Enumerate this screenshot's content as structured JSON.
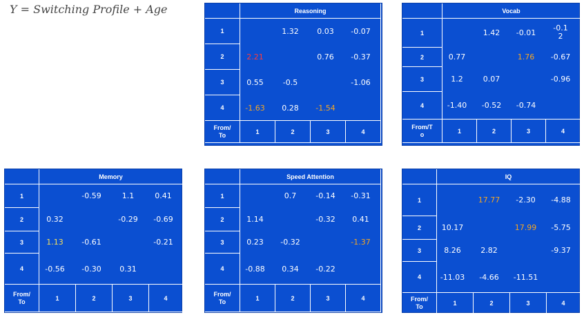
{
  "formula": "Y = Switching Profile + Age",
  "colors": {
    "table_bg": "#0b4fd1",
    "text": "#ffffff",
    "red": "#ff3b3b",
    "orange": "#f5a623",
    "yellow": "#f7e05a"
  },
  "tables": {
    "reasoning": {
      "title": "Reasoning",
      "corner": "From/\nTo",
      "rows": [
        "1",
        "2",
        "3",
        "4"
      ],
      "cols": [
        "1",
        "2",
        "3",
        "4"
      ],
      "values": [
        [
          "",
          "1.32",
          "0.03",
          "-0.07"
        ],
        [
          "2.21",
          "",
          "0.76",
          "-0.37"
        ],
        [
          "0.55",
          "-0.5",
          "",
          "-1.06"
        ],
        [
          "-1.63",
          "0.28",
          "-1.54",
          ""
        ]
      ]
    },
    "vocab": {
      "title": "Vocab",
      "corner": "From/T\no",
      "rows": [
        "1",
        "2",
        "3",
        "4"
      ],
      "cols": [
        "1",
        "2",
        "3",
        "4"
      ],
      "values": [
        [
          "",
          "1.42",
          "-0.01",
          "-0.1\n2"
        ],
        [
          "0.77",
          "",
          "1.76",
          "-0.67"
        ],
        [
          "1.2",
          "0.07",
          "",
          "-0.96"
        ],
        [
          "-1.40",
          "-0.52",
          "-0.74",
          ""
        ]
      ]
    },
    "memory": {
      "title": "Memory",
      "corner": "From/\nTo",
      "rows": [
        "1",
        "2",
        "3",
        "4"
      ],
      "cols": [
        "1",
        "2",
        "3",
        "4"
      ],
      "values": [
        [
          "",
          "-0.59",
          "1.1",
          "0.41"
        ],
        [
          "0.32",
          "",
          "-0.29",
          "-0.69"
        ],
        [
          "1.13",
          "-0.61",
          "",
          "-0.21"
        ],
        [
          "-0.56",
          "-0.30",
          "0.31",
          ""
        ]
      ]
    },
    "speed": {
      "title": "Speed Attention",
      "corner": "From/\nTo",
      "rows": [
        "1",
        "2",
        "3",
        "4"
      ],
      "cols": [
        "1",
        "2",
        "3",
        "4"
      ],
      "values": [
        [
          "",
          "0.7",
          "-0.14",
          "-0.31"
        ],
        [
          "1.14",
          "",
          "-0.32",
          "0.41"
        ],
        [
          "0.23",
          "-0.32",
          "",
          "-1.37"
        ],
        [
          "-0.88",
          "0.34",
          "-0.22",
          ""
        ]
      ]
    },
    "iq": {
      "title": "IQ",
      "corner": "From/\nTo",
      "rows": [
        "1",
        "2",
        "3",
        "4"
      ],
      "cols": [
        "1",
        "2",
        "3",
        "4"
      ],
      "values": [
        [
          "",
          "17.77",
          "-2.30",
          "-4.88"
        ],
        [
          "10.17",
          "",
          "17.99",
          "-5.75"
        ],
        [
          "8.26",
          "2.82",
          "",
          "-9.37"
        ],
        [
          "-11.03",
          "-4.66",
          "-11.51",
          ""
        ]
      ]
    }
  }
}
